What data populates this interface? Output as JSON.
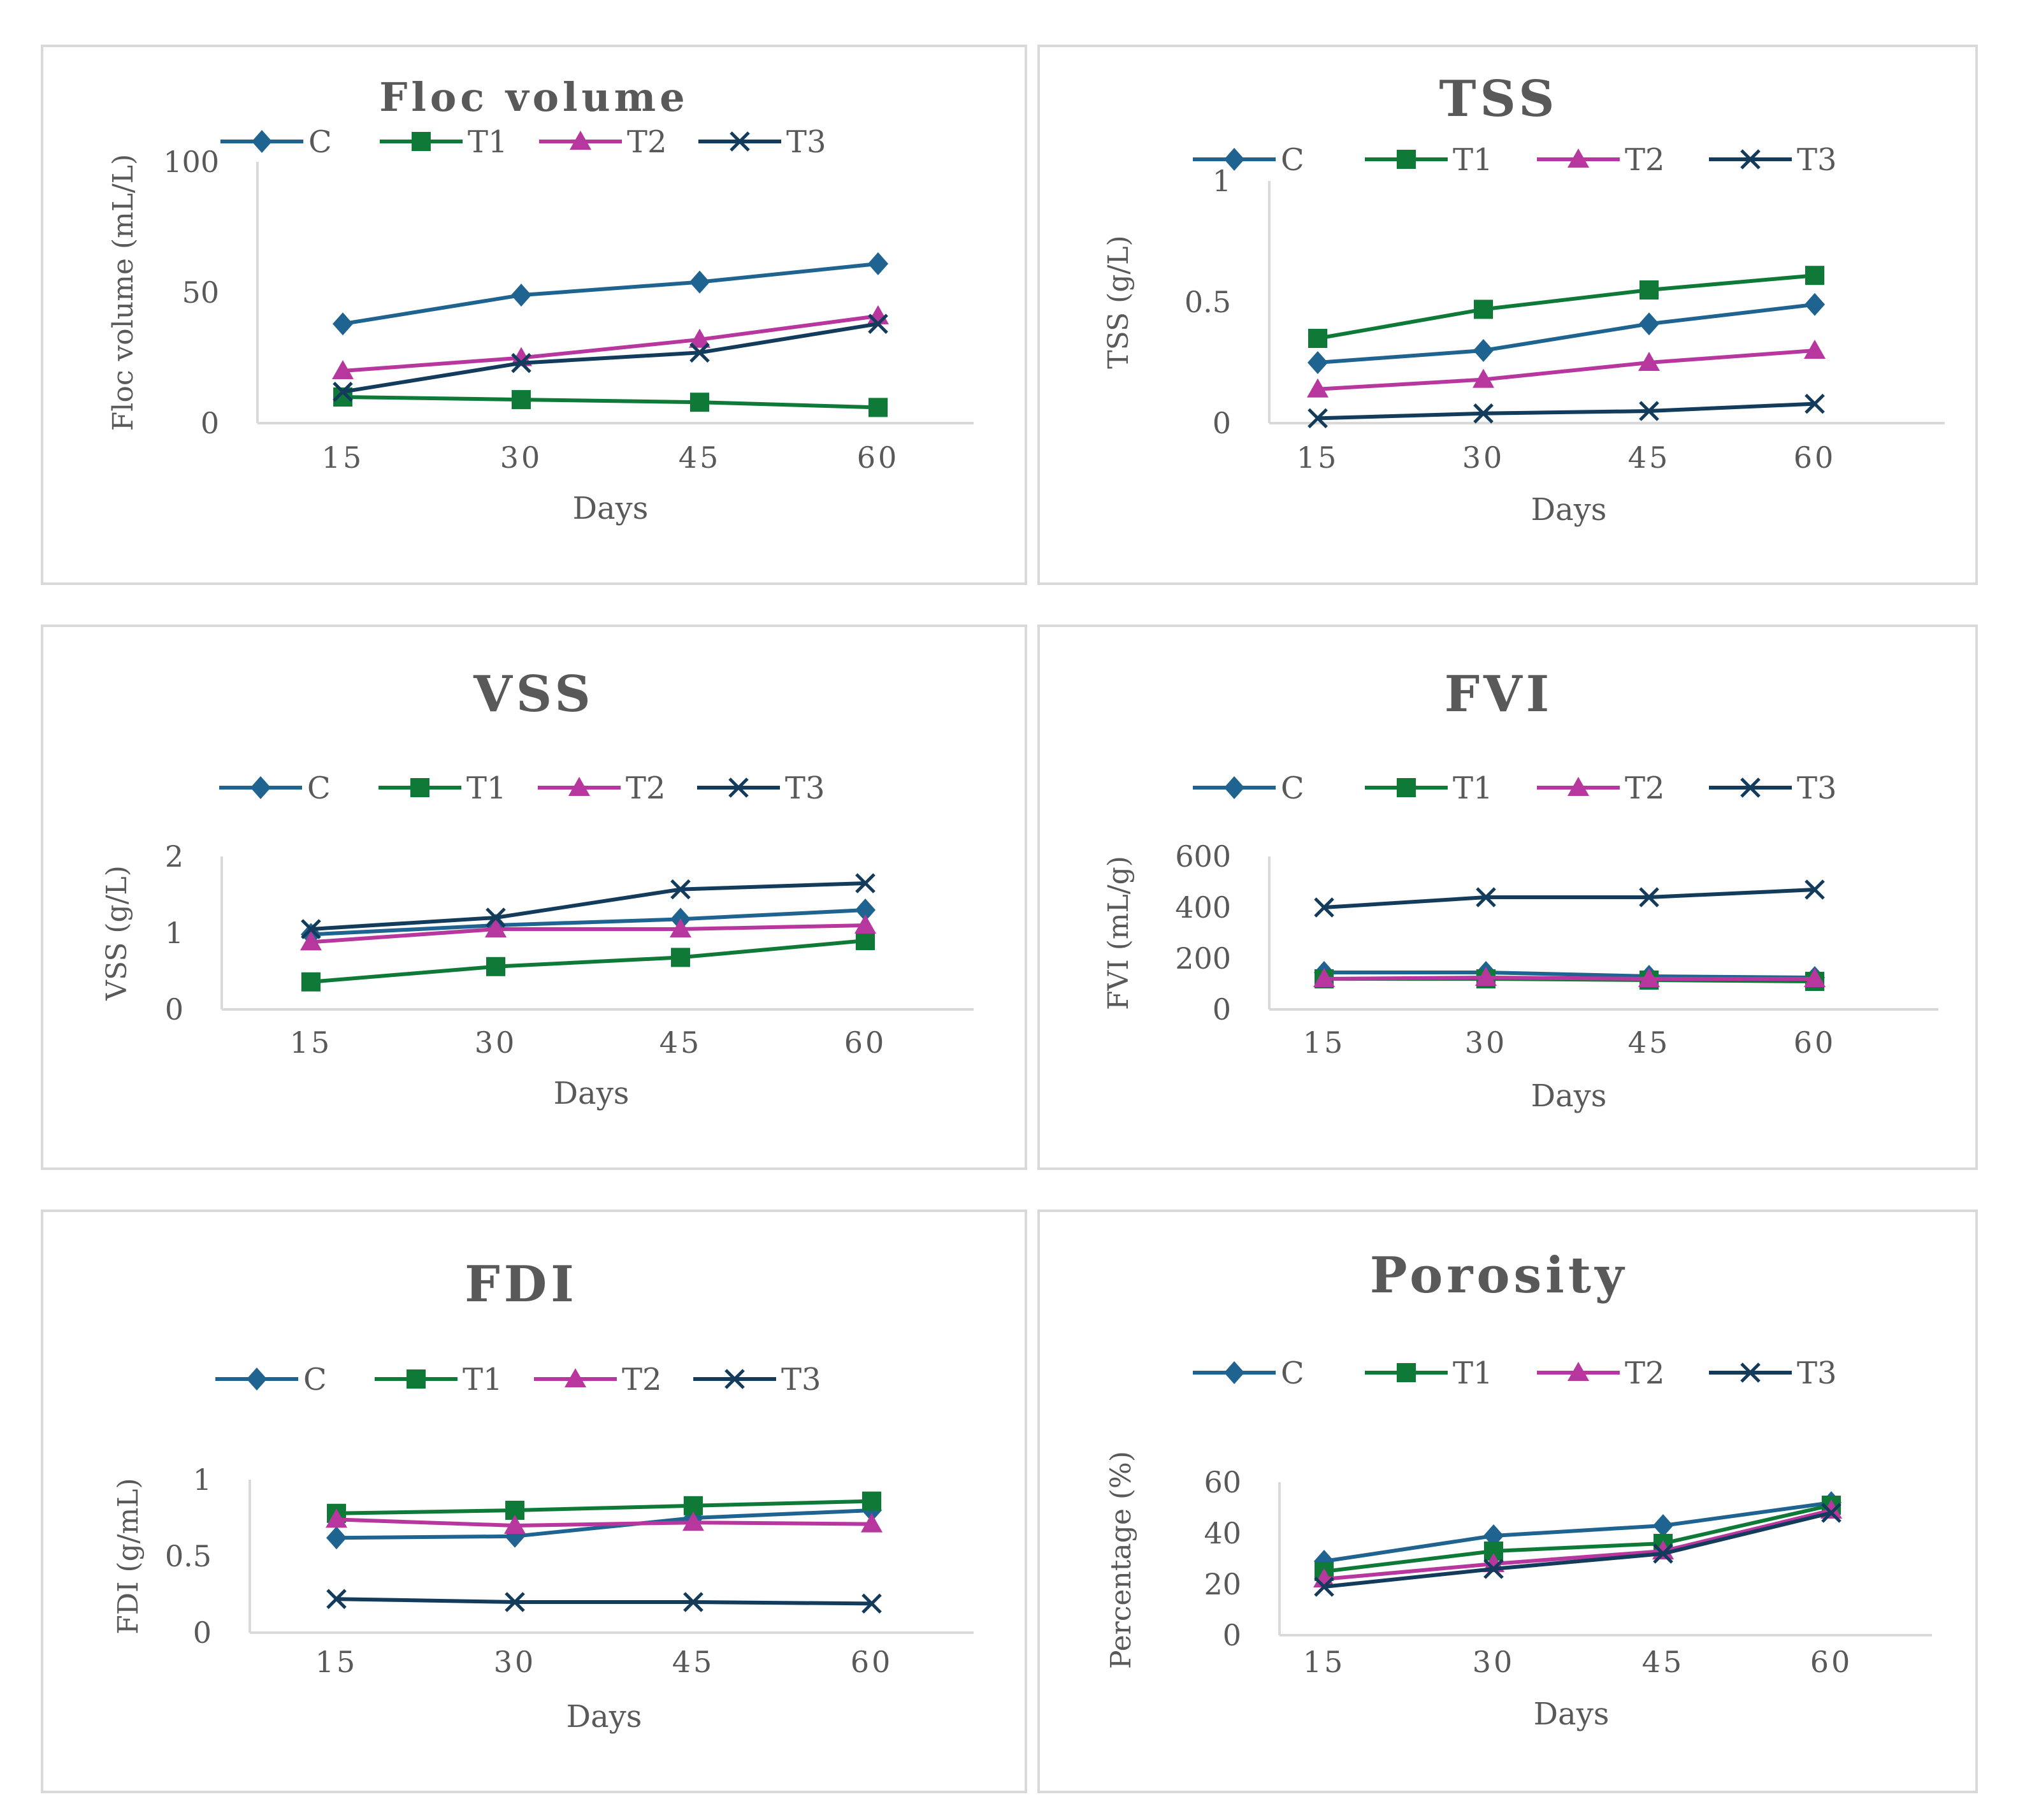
{
  "colors": {
    "C": "#1f6391",
    "T1": "#0f7a37",
    "T2": "#b7379f",
    "T3": "#133b5c",
    "axis": "#d9d9d9",
    "text": "#595959"
  },
  "legend_names": [
    "C",
    "T1",
    "T2",
    "T3"
  ],
  "chart_data": [
    {
      "type": "line",
      "title": "Floc volume",
      "xlabel": "Days",
      "ylabel": "Floc volume (mL/L)",
      "categories": [
        "15",
        "30",
        "45",
        "60"
      ],
      "yticks": [
        "0",
        "50",
        "100"
      ],
      "ylim": [
        0,
        100
      ],
      "legend": "top",
      "series": [
        {
          "name": "C",
          "marker": "diamond",
          "values": [
            38,
            49,
            54,
            61
          ]
        },
        {
          "name": "T1",
          "marker": "square",
          "values": [
            10,
            9,
            8,
            6
          ]
        },
        {
          "name": "T2",
          "marker": "triangle",
          "values": [
            20,
            25,
            32,
            41
          ]
        },
        {
          "name": "T3",
          "marker": "x",
          "values": [
            12,
            23,
            27,
            38
          ]
        }
      ]
    },
    {
      "type": "line",
      "title": "TSS",
      "xlabel": "Days",
      "ylabel": "TSS (g/L)",
      "categories": [
        "15",
        "30",
        "45",
        "60"
      ],
      "yticks": [
        "0",
        "0.5",
        "1"
      ],
      "ylim": [
        0,
        1
      ],
      "legend": "top",
      "series": [
        {
          "name": "C",
          "marker": "diamond",
          "values": [
            0.25,
            0.3,
            0.41,
            0.49
          ]
        },
        {
          "name": "T1",
          "marker": "square",
          "values": [
            0.35,
            0.47,
            0.55,
            0.61
          ]
        },
        {
          "name": "T2",
          "marker": "triangle",
          "values": [
            0.14,
            0.18,
            0.25,
            0.3
          ]
        },
        {
          "name": "T3",
          "marker": "x",
          "values": [
            0.02,
            0.04,
            0.05,
            0.08
          ]
        }
      ]
    },
    {
      "type": "line",
      "title": "VSS",
      "xlabel": "Days",
      "ylabel": "VSS (g/L)",
      "categories": [
        "15",
        "30",
        "45",
        "60"
      ],
      "yticks": [
        "0",
        "1",
        "2"
      ],
      "ylim": [
        0,
        2
      ],
      "legend": "top",
      "series": [
        {
          "name": "C",
          "marker": "diamond",
          "values": [
            0.98,
            1.1,
            1.18,
            1.3
          ]
        },
        {
          "name": "T1",
          "marker": "square",
          "values": [
            0.36,
            0.56,
            0.68,
            0.9
          ]
        },
        {
          "name": "T2",
          "marker": "triangle",
          "values": [
            0.88,
            1.05,
            1.05,
            1.1
          ]
        },
        {
          "name": "T3",
          "marker": "x",
          "values": [
            1.05,
            1.2,
            1.57,
            1.65
          ]
        }
      ]
    },
    {
      "type": "line",
      "title": "FVI",
      "xlabel": "Days",
      "ylabel": "FVI (mL/g)",
      "categories": [
        "15",
        "30",
        "45",
        "60"
      ],
      "yticks": [
        "0",
        "200",
        "400",
        "600"
      ],
      "ylim": [
        0,
        600
      ],
      "legend": "top",
      "series": [
        {
          "name": "C",
          "marker": "diamond",
          "values": [
            145,
            145,
            130,
            125
          ]
        },
        {
          "name": "T1",
          "marker": "square",
          "values": [
            120,
            120,
            115,
            110
          ]
        },
        {
          "name": "T2",
          "marker": "triangle",
          "values": [
            120,
            125,
            120,
            120
          ]
        },
        {
          "name": "T3",
          "marker": "x",
          "values": [
            400,
            440,
            440,
            470
          ]
        }
      ]
    },
    {
      "type": "line",
      "title": "FDI",
      "xlabel": "Days",
      "ylabel": "FDI (g/mL)",
      "categories": [
        "15",
        "30",
        "45",
        "60"
      ],
      "yticks": [
        "0",
        "0.5",
        "1"
      ],
      "ylim": [
        0,
        1
      ],
      "legend": "top",
      "series": [
        {
          "name": "C",
          "marker": "diamond",
          "values": [
            0.62,
            0.63,
            0.75,
            0.8
          ]
        },
        {
          "name": "T1",
          "marker": "square",
          "values": [
            0.78,
            0.8,
            0.83,
            0.86
          ]
        },
        {
          "name": "T2",
          "marker": "triangle",
          "values": [
            0.74,
            0.7,
            0.72,
            0.71
          ]
        },
        {
          "name": "T3",
          "marker": "x",
          "values": [
            0.22,
            0.2,
            0.2,
            0.19
          ]
        }
      ]
    },
    {
      "type": "line",
      "title": "Porosity",
      "xlabel": "Days",
      "ylabel": "Percentage (%)",
      "categories": [
        "15",
        "30",
        "45",
        "60"
      ],
      "yticks": [
        "0",
        "20",
        "40",
        "60"
      ],
      "ylim": [
        0,
        60
      ],
      "legend": "top",
      "series": [
        {
          "name": "C",
          "marker": "diamond",
          "values": [
            29,
            39,
            43,
            52
          ]
        },
        {
          "name": "T1",
          "marker": "square",
          "values": [
            25,
            33,
            36,
            51
          ]
        },
        {
          "name": "T2",
          "marker": "triangle",
          "values": [
            22,
            28,
            33,
            49
          ]
        },
        {
          "name": "T3",
          "marker": "x",
          "values": [
            19,
            26,
            32,
            48
          ]
        }
      ]
    }
  ]
}
